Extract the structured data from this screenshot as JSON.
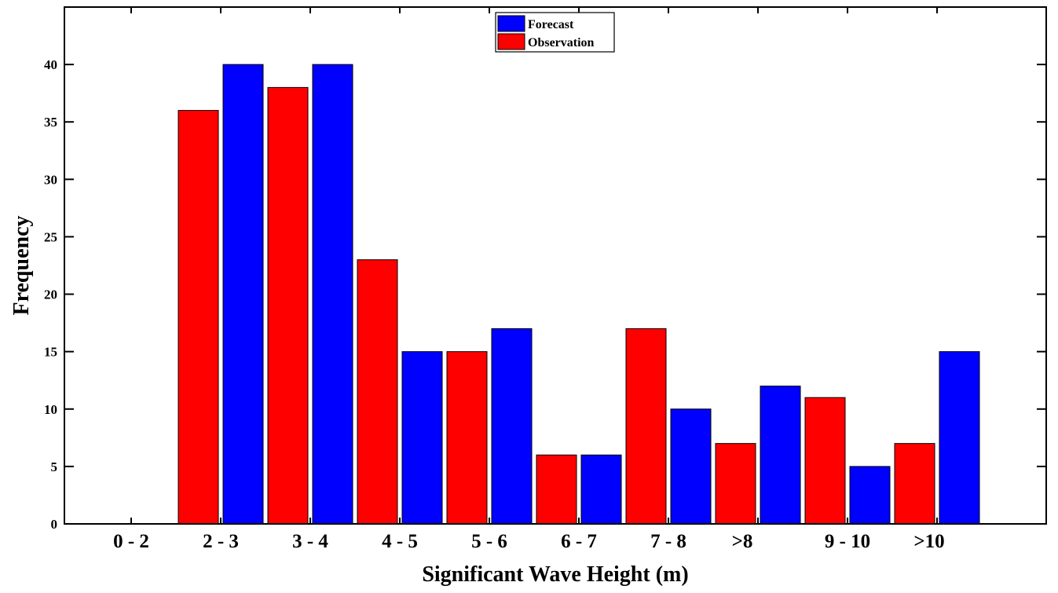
{
  "chart_data": {
    "type": "bar",
    "xlabel": "Significant Wave Height (m)",
    "ylabel": "Frequency",
    "ylim": [
      0,
      45
    ],
    "yticks": [
      0,
      5,
      10,
      15,
      20,
      25,
      30,
      35,
      40
    ],
    "grid": false,
    "legend_position": "top-center",
    "colors": {
      "forecast": "#0000ff",
      "observation": "#ff0000"
    },
    "categories": [
      "0 - 2",
      "2 - 3",
      "3 - 4",
      "4 - 5",
      "5 - 6",
      "6 - 7",
      "7 - 8",
      ">8",
      "9 - 10",
      ">10"
    ],
    "series": [
      {
        "name": "Forecast",
        "values": [
          0,
          40,
          40,
          15,
          17,
          6,
          10,
          12,
          5,
          15
        ]
      },
      {
        "name": "Observation",
        "values": [
          0,
          36,
          38,
          23,
          15,
          6,
          17,
          7,
          11,
          7
        ]
      }
    ]
  }
}
